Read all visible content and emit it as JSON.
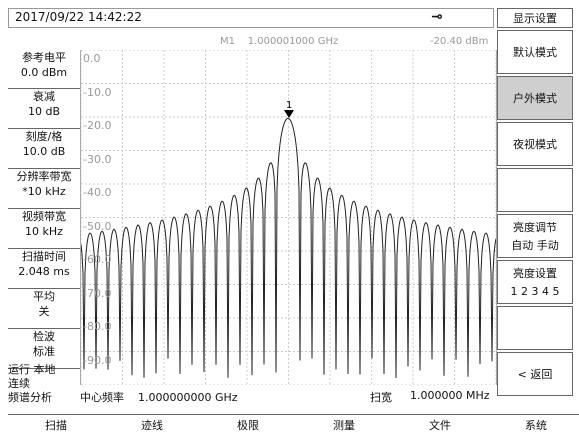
{
  "status": {
    "datetime": "2017/09/22  14:42:22",
    "connection_icon": "plug-icon"
  },
  "marker": {
    "label": "M1",
    "freq": "1.000001000 GHz",
    "amp": "-20.40 dBm",
    "tag": "1"
  },
  "left_panel": [
    {
      "title": "参考电平",
      "value": "0.0 dBm"
    },
    {
      "title": "衰减",
      "value": "10 dB"
    },
    {
      "title": "刻度/格",
      "value": "10.0 dB"
    },
    {
      "title": "分辨率带宽",
      "value": "*10 kHz"
    },
    {
      "title": "视频带宽",
      "value": "10 kHz"
    },
    {
      "title": "扫描时间",
      "value": "2.048 ms"
    },
    {
      "title": "平均",
      "value": "关"
    },
    {
      "title": "检波",
      "value": "标准"
    }
  ],
  "run_status": [
    "运行  本地",
    "连续",
    "频谱分析"
  ],
  "y_labels": [
    "0.0",
    "-10.0",
    "-20.0",
    "-30.0",
    "-40.0",
    "-50.0",
    "-60.0",
    "-70.0",
    "-80.0",
    "-90.0"
  ],
  "bottom_info": {
    "center_label": "中心频率",
    "center_value": "1.000000000 GHz",
    "span_label": "扫宽",
    "span_value": "1.000000 MHz"
  },
  "right_menu": {
    "title": "显示设置",
    "items": [
      {
        "label": "默认模式"
      },
      {
        "label": "户外模式"
      },
      {
        "label": "夜视模式"
      },
      {
        "label": ""
      },
      {
        "label": "亮度调节",
        "sub": "自动  手动"
      },
      {
        "label": "亮度设置",
        "sub": "1 2 3 4 5"
      },
      {
        "label": ""
      },
      {
        "label": "< 返回"
      }
    ]
  },
  "bottom_menu": [
    "扫描",
    "迹线",
    "极限",
    "测量",
    "文件",
    "系统"
  ],
  "chart_data": {
    "type": "line",
    "x_center_ghz": 1.0,
    "span_mhz": 1.0,
    "ylim": [
      -100,
      0
    ],
    "y_unit": "dBm",
    "peak": {
      "x_ghz": 1.000001,
      "y": -20.4
    }
  }
}
